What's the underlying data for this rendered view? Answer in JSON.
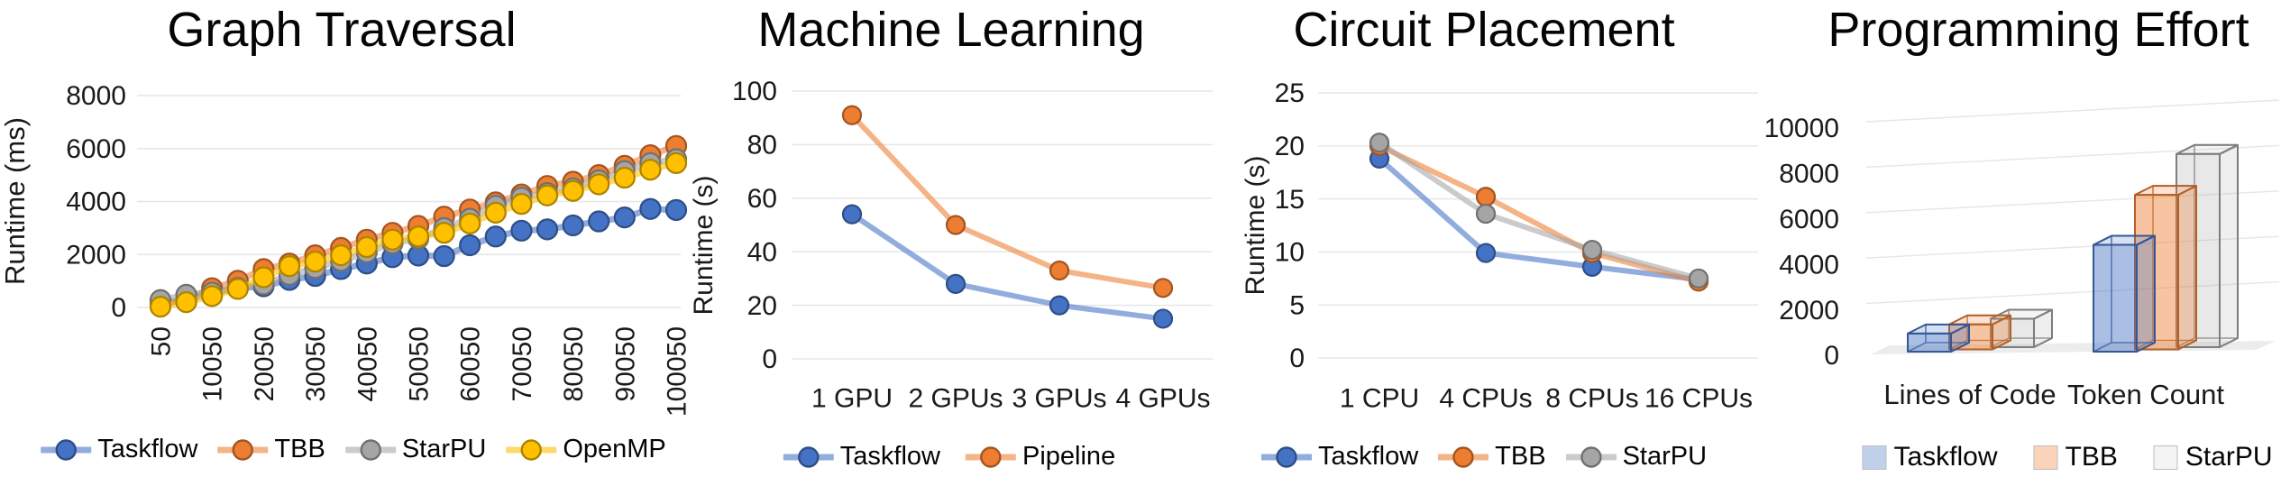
{
  "figure": {
    "background": "#ffffff"
  },
  "chart_data": [
    {
      "type": "line",
      "title": "Graph Traversal",
      "ylabel": "Runtime (ms)",
      "xlabel": "",
      "ylim": [
        0,
        8000
      ],
      "ytick_step": 2000,
      "ytick_labels": [
        "0",
        "2000",
        "4000",
        "6000",
        "8000"
      ],
      "x": [
        50,
        5050,
        10050,
        15050,
        20050,
        25050,
        30050,
        35050,
        40050,
        45050,
        50050,
        55050,
        60050,
        65050,
        70050,
        75050,
        80050,
        85050,
        90050,
        95050,
        100050
      ],
      "xtick_labels": [
        "50",
        "10050",
        "20050",
        "30050",
        "40050",
        "50050",
        "60050",
        "70050",
        "80050",
        "90050",
        "100050"
      ],
      "xtick_every": 2,
      "x_label_rotation": 90,
      "grid": "horizontal",
      "legend_position": "bottom",
      "series": [
        {
          "name": "Taskflow",
          "color": "#4472C4",
          "values": [
            150,
            300,
            550,
            730,
            800,
            1040,
            1190,
            1450,
            1660,
            1900,
            1960,
            1940,
            2350,
            2680,
            2900,
            2950,
            3100,
            3250,
            3400,
            3720,
            3680
          ]
        },
        {
          "name": "TBB",
          "color": "#ED7D31",
          "values": [
            100,
            310,
            730,
            1010,
            1450,
            1660,
            1970,
            2250,
            2560,
            2820,
            3080,
            3430,
            3700,
            3970,
            4270,
            4590,
            4750,
            5000,
            5350,
            5750,
            6100
          ]
        },
        {
          "name": "StarPU",
          "color": "#A5A5A5",
          "values": [
            280,
            480,
            560,
            740,
            870,
            1230,
            1490,
            1760,
            2080,
            2420,
            2600,
            3000,
            3350,
            3840,
            4150,
            4320,
            4500,
            4800,
            5150,
            5450,
            5600
          ]
        },
        {
          "name": "OpenMP",
          "color": "#FFC000",
          "values": [
            30,
            200,
            430,
            700,
            1140,
            1560,
            1730,
            1970,
            2280,
            2560,
            2680,
            2820,
            3170,
            3580,
            3910,
            4230,
            4400,
            4650,
            4900,
            5200,
            5450
          ]
        }
      ]
    },
    {
      "type": "line",
      "title": "Machine Learning",
      "ylabel": "Runtime (s)",
      "xlabel": "",
      "ylim": [
        0,
        100
      ],
      "ytick_step": 20,
      "ytick_labels": [
        "0",
        "20",
        "40",
        "60",
        "80",
        "100"
      ],
      "categories": [
        "1 GPU",
        "2 GPUs",
        "3 GPUs",
        "4 GPUs"
      ],
      "grid": "horizontal",
      "legend_position": "bottom",
      "series": [
        {
          "name": "Taskflow",
          "color": "#4472C4",
          "values": [
            54,
            28,
            20,
            15
          ]
        },
        {
          "name": "Pipeline",
          "color": "#ED7D31",
          "values": [
            91,
            50,
            33,
            26.5
          ]
        }
      ]
    },
    {
      "type": "line",
      "title": "Circuit Placement",
      "ylabel": "Runtime (s)",
      "xlabel": "",
      "ylim": [
        0,
        25
      ],
      "ytick_step": 5,
      "ytick_labels": [
        "0",
        "5",
        "10",
        "15",
        "20",
        "25"
      ],
      "categories": [
        "1 CPU",
        "4 CPUs",
        "8 CPUs",
        "16 CPUs"
      ],
      "grid": "horizontal",
      "legend_position": "bottom",
      "series": [
        {
          "name": "Taskflow",
          "color": "#4472C4",
          "values": [
            18.8,
            9.9,
            8.6,
            7.4
          ]
        },
        {
          "name": "TBB",
          "color": "#ED7D31",
          "values": [
            20.0,
            15.2,
            9.9,
            7.2
          ]
        },
        {
          "name": "StarPU",
          "color": "#A5A5A5",
          "values": [
            20.3,
            13.6,
            10.2,
            7.5
          ]
        }
      ]
    },
    {
      "type": "bar3d",
      "title": "Programming Effort",
      "ylabel": "",
      "xlabel": "",
      "ylim": [
        0,
        10000
      ],
      "ytick_step": 2000,
      "ytick_labels": [
        "0",
        "2000",
        "4000",
        "6000",
        "8000",
        "10000"
      ],
      "categories": [
        "Lines of Code",
        "Token Count"
      ],
      "grid": "horizontal",
      "legend_position": "bottom",
      "series": [
        {
          "name": "Taskflow",
          "color": "#4472C4",
          "values": [
            800,
            4700
          ]
        },
        {
          "name": "TBB",
          "color": "#ED7D31",
          "values": [
            1100,
            6800
          ]
        },
        {
          "name": "StarPU",
          "color": "#A5A5A5",
          "values": [
            1250,
            8500
          ]
        }
      ]
    }
  ]
}
